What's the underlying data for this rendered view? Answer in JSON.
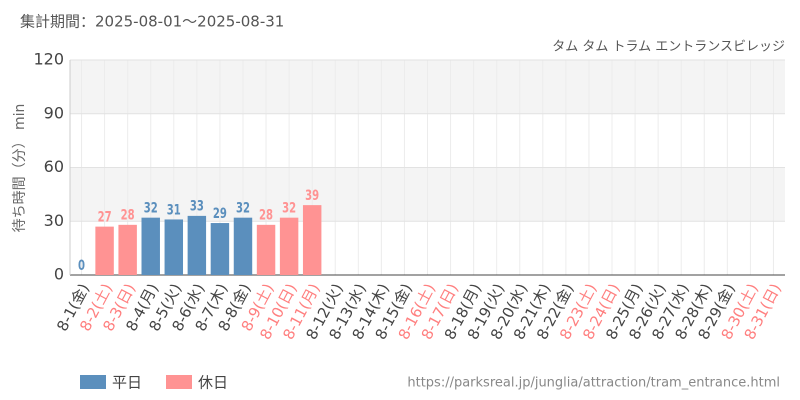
{
  "chart_data": {
    "type": "bar",
    "title": "集計期間：2025-08-01〜2025-08-31",
    "subtitle": "タム タム トラム エントランスビレッジ",
    "y_label": "待ち時間（分） min",
    "source": "https://parksreal.jp/junglia/attraction/tram_entrance.html",
    "categories": [
      "8-1(金)",
      "8-2(土)",
      "8-3(日)",
      "8-4(月)",
      "8-5(火)",
      "8-6(水)",
      "8-7(木)",
      "8-8(金)",
      "8-9(土)",
      "8-10(日)",
      "8-11(月)",
      "8-12(火)",
      "8-13(水)",
      "8-14(木)",
      "8-15(金)",
      "8-16(土)",
      "8-17(日)",
      "8-18(月)",
      "8-19(火)",
      "8-20(水)",
      "8-21(木)",
      "8-22(金)",
      "8-23(土)",
      "8-24(日)",
      "8-25(月)",
      "8-26(火)",
      "8-27(水)",
      "8-28(木)",
      "8-29(金)",
      "8-30(土)",
      "8-31(日)"
    ],
    "category_colors": [
      "#444",
      "#ff7f7f",
      "#ff7f7f",
      "#444",
      "#444",
      "#444",
      "#444",
      "#444",
      "#ff7f7f",
      "#ff7f7f",
      "#ff7f7f",
      "#444",
      "#444",
      "#444",
      "#444",
      "#ff7f7f",
      "#ff7f7f",
      "#444",
      "#444",
      "#444",
      "#444",
      "#444",
      "#ff7f7f",
      "#ff7f7f",
      "#444",
      "#444",
      "#444",
      "#444",
      "#444",
      "#ff7f7f",
      "#ff7f7f"
    ],
    "series": [
      {
        "name": "平日",
        "color": "#5b8fbd",
        "values": [
          0,
          null,
          null,
          32,
          31,
          33,
          29,
          32,
          null,
          null,
          null,
          null,
          null,
          null,
          null,
          null,
          null,
          null,
          null,
          null,
          null,
          null,
          null,
          null,
          null,
          null,
          null,
          null,
          null,
          null,
          null
        ]
      },
      {
        "name": "休日",
        "color": "#ff9393",
        "values": [
          null,
          27,
          28,
          null,
          null,
          null,
          null,
          null,
          28,
          32,
          39,
          null,
          null,
          null,
          null,
          null,
          null,
          null,
          null,
          null,
          null,
          null,
          null,
          null,
          null,
          null,
          null,
          null,
          null,
          null,
          null
        ]
      }
    ],
    "ylim": [
      0,
      120
    ],
    "yticks": [
      0,
      30,
      60,
      90,
      120
    ],
    "grid": true
  }
}
